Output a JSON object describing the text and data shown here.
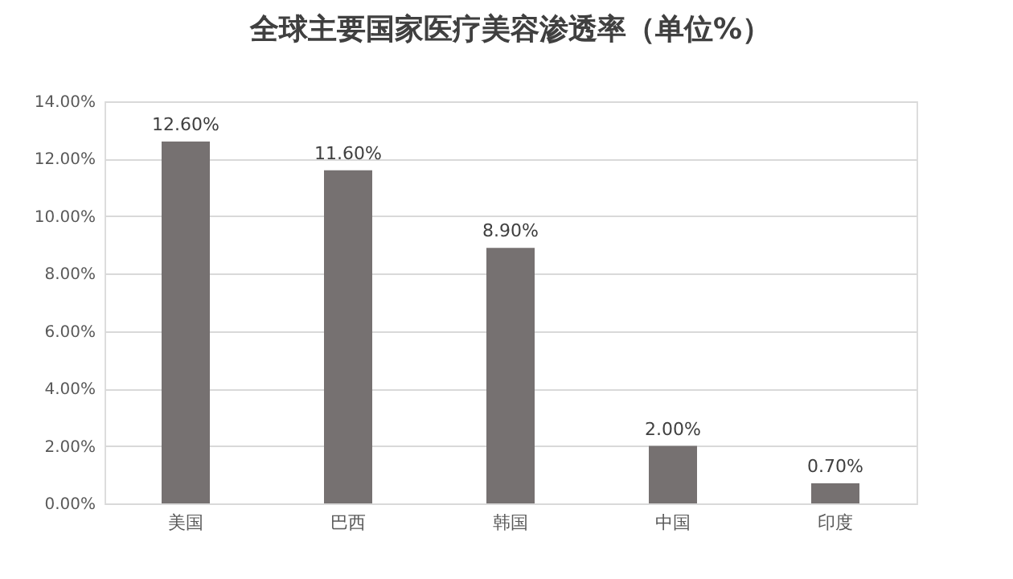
{
  "chart_data": {
    "type": "bar",
    "title": "全球主要国家医疗美容渗透率（单位%）",
    "categories": [
      "美国",
      "巴西",
      "韩国",
      "中国",
      "印度"
    ],
    "values": [
      12.6,
      11.6,
      8.9,
      2.0,
      0.7
    ],
    "value_labels": [
      "12.60%",
      "11.60%",
      "8.90%",
      "2.00%",
      "0.70%"
    ],
    "color": "#767171",
    "ylim": [
      0,
      14
    ],
    "yticks": [
      {
        "value": 0,
        "label": "0.00%"
      },
      {
        "value": 2,
        "label": "2.00%"
      },
      {
        "value": 4,
        "label": "4.00%"
      },
      {
        "value": 6,
        "label": "6.00%"
      },
      {
        "value": 8,
        "label": "8.00%"
      },
      {
        "value": 10,
        "label": "10.00%"
      },
      {
        "value": 12,
        "label": "12.00%"
      },
      {
        "value": 14,
        "label": "14.00%"
      }
    ],
    "grid": "y"
  }
}
